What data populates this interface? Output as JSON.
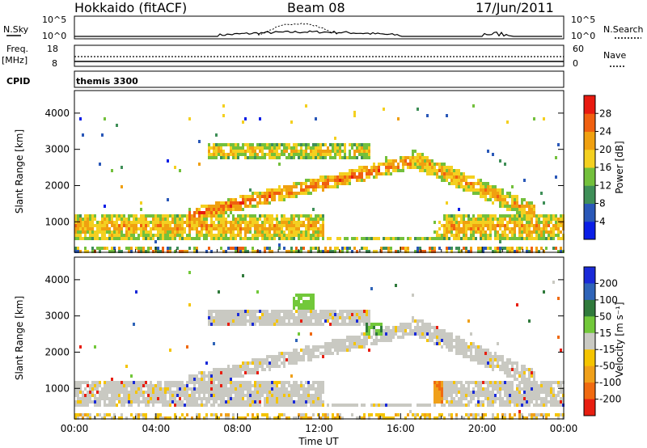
{
  "header": {
    "station": "Hokkaido (fitACF)",
    "beam": "Beam 08",
    "date": "17/Jun/2011"
  },
  "noise_panel": {
    "left_label": "N.Sky",
    "right_label": "N.Search",
    "ticks_left": [
      "10^5",
      "10^0"
    ],
    "ticks_right": [
      "10^5",
      "10^0"
    ]
  },
  "freq_panel": {
    "left_label_line1": "Freq.",
    "left_label_line2": "[MHz]",
    "right_label": "Nave",
    "ticks_left": [
      "18",
      "8"
    ],
    "ticks_right": [
      "60",
      "0"
    ]
  },
  "cpid_panel": {
    "label": "CPID",
    "value": "themis 3300"
  },
  "colors": {
    "power_scale": [
      "#0a1ee6",
      "#2a58b8",
      "#3f8f58",
      "#73c03c",
      "#f4d020",
      "#f0a010",
      "#f06010",
      "#e81a10"
    ],
    "velocity_scale": [
      "#1a2ad8",
      "#2f64b8",
      "#307a3c",
      "#72c83a",
      "#c9c9c2",
      "#f5c400",
      "#f0a01a",
      "#f06a10",
      "#e81e10"
    ]
  },
  "chart_data": [
    {
      "type": "heatmap",
      "title": "Power",
      "xlabel": "",
      "ylabel": "Slant Range [km]",
      "xlim": [
        "00:00",
        "24:00"
      ],
      "ylim": [
        180,
        4600
      ],
      "x_tick_labels": [
        "00:00",
        "04:00",
        "08:00",
        "12:00",
        "16:00",
        "20:00",
        "00:00"
      ],
      "y_tick_labels": [
        "1000",
        "2000",
        "3000",
        "4000"
      ],
      "y_ticks": [
        1000,
        2000,
        3000,
        4000
      ],
      "colorbar": {
        "label": "Power [dB]",
        "tick_labels": [
          "4",
          "8",
          "12",
          "16",
          "20",
          "24",
          "28"
        ],
        "range": [
          0,
          32
        ]
      },
      "bands": [
        {
          "name": "near-range",
          "x_start": 0.0,
          "x_end": 24.0,
          "range_center": 900,
          "width": 700,
          "level": 22
        },
        {
          "name": "main-arc",
          "x_start": 5.5,
          "x_end": 16.5,
          "range_center_start": 1200,
          "range_center_end": 2700,
          "width": 400,
          "level": 26
        },
        {
          "name": "upper-arc",
          "x_start": 6.5,
          "x_end": 14.5,
          "range_center": 3000,
          "width": 400,
          "level": 20
        },
        {
          "name": "descending-arc",
          "x_start": 16.5,
          "x_end": 22.5,
          "range_center_start": 2800,
          "range_center_end": 1300,
          "width": 500,
          "level": 22
        }
      ]
    },
    {
      "type": "heatmap",
      "title": "Velocity",
      "xlabel": "Time UT",
      "ylabel": "Slant Range [km]",
      "xlim": [
        "00:00",
        "24:00"
      ],
      "ylim": [
        180,
        4600
      ],
      "x_tick_labels": [
        "00:00",
        "04:00",
        "08:00",
        "12:00",
        "16:00",
        "20:00",
        "00:00"
      ],
      "y_tick_labels": [
        "1000",
        "2000",
        "3000",
        "4000"
      ],
      "y_ticks": [
        1000,
        2000,
        3000,
        4000
      ],
      "colorbar": {
        "label": "Velocity [m s⁻¹]",
        "tick_labels": [
          "200",
          "100",
          "50",
          "15",
          "-15",
          "-50",
          "-100",
          "-200"
        ]
      },
      "features": [
        {
          "name": "ground-scatter",
          "velocity": 0
        },
        {
          "name": "green-patch",
          "x_start": 10.7,
          "x_end": 11.7,
          "range_center": 3400,
          "velocity": 40
        },
        {
          "name": "orange-patch",
          "x_start": 17.6,
          "x_end": 18.7,
          "range_center": 900,
          "velocity": -60
        }
      ]
    }
  ]
}
